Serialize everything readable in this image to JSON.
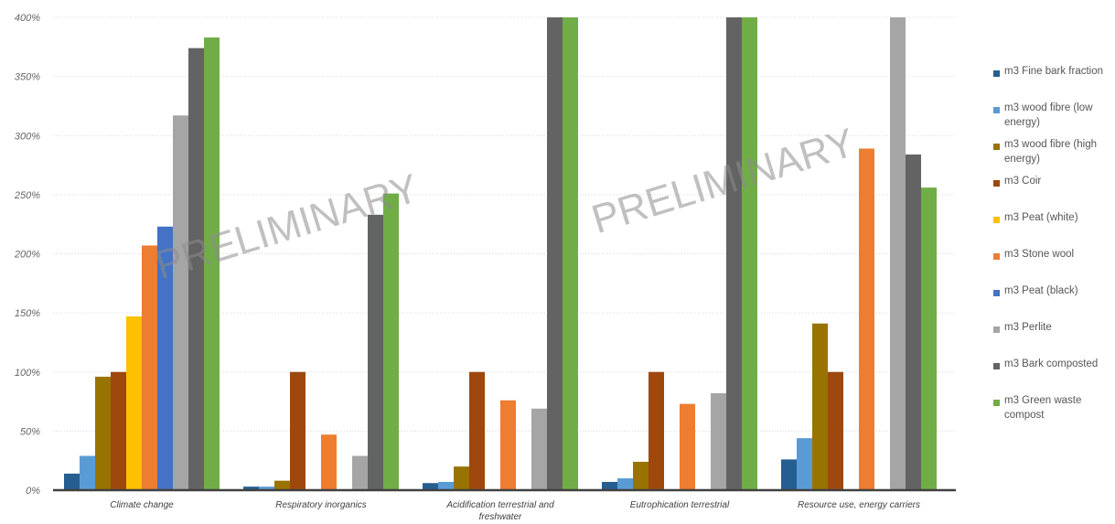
{
  "watermark": "PRELIMINARY",
  "chart_data": {
    "type": "bar",
    "categories": [
      "Climate change",
      "Respiratory inorganics",
      "Acidification terrestrial and freshwater",
      "Eutrophication terrestrial",
      "Resource use, energy carriers"
    ],
    "y_ticks": [
      "0%",
      "50%",
      "100%",
      "150%",
      "200%",
      "250%",
      "300%",
      "350%",
      "400%"
    ],
    "ylim": [
      0,
      400
    ],
    "y_unit": "%",
    "grid": true,
    "legend_position": "right",
    "series": [
      {
        "name": "m3 Fine bark fraction",
        "color": "#255e91",
        "values": [
          14,
          3,
          6,
          7,
          26
        ]
      },
      {
        "name": "m3 wood fibre (low energy)",
        "color": "#5b9bd5",
        "values": [
          29,
          3,
          7,
          10,
          44
        ]
      },
      {
        "name": "m3 wood fibre (high energy)",
        "color": "#997300",
        "values": [
          96,
          8,
          20,
          24,
          141
        ]
      },
      {
        "name": "m3 Coir",
        "color": "#9e480e",
        "values": [
          100,
          100,
          100,
          100,
          100
        ]
      },
      {
        "name": "m3 Peat (white)",
        "color": "#ffc000",
        "values": [
          147,
          0,
          0,
          0,
          0
        ]
      },
      {
        "name": "m3 Stone wool",
        "color": "#ed7d31",
        "values": [
          207,
          47,
          76,
          73,
          289
        ]
      },
      {
        "name": "m3 Peat (black)",
        "color": "#4472c4",
        "values": [
          223,
          0,
          0,
          0,
          0
        ]
      },
      {
        "name": "m3 Perlite",
        "color": "#a5a5a5",
        "values": [
          317,
          29,
          69,
          82,
          400
        ]
      },
      {
        "name": "m3 Bark composted",
        "color": "#636363",
        "values": [
          374,
          233,
          400,
          400,
          284
        ]
      },
      {
        "name": "m3 Green waste compost",
        "color": "#70ad47",
        "values": [
          383,
          251,
          400,
          400,
          256
        ]
      }
    ]
  }
}
